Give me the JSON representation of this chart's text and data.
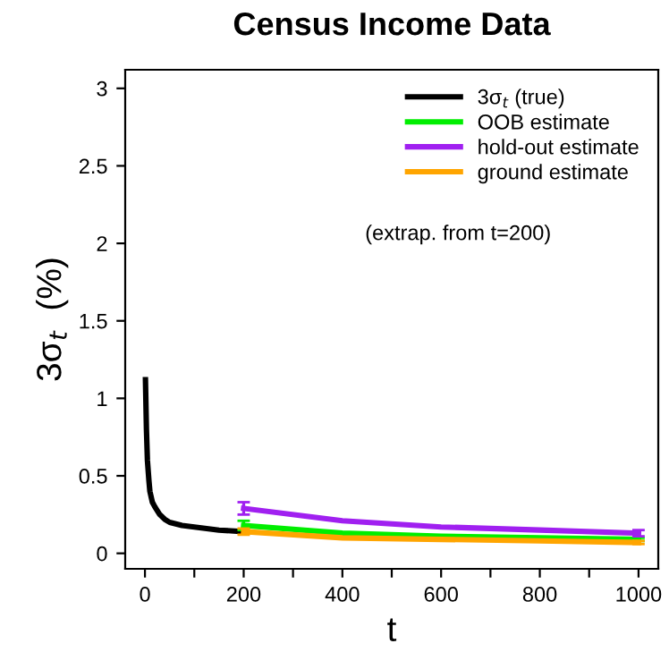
{
  "chart_data": {
    "type": "line",
    "title": "Census Income Data",
    "xlabel": "t",
    "ylabel": "3σ$_{t}$  (%)",
    "xlim": [
      -40,
      1040
    ],
    "ylim": [
      -0.1,
      3.12
    ],
    "xticks": [
      0,
      {
        "value": 100,
        "label": null
      },
      200,
      {
        "value": 300,
        "label": null
      },
      400,
      {
        "value": 500,
        "label": null
      },
      600,
      {
        "value": 700,
        "label": null
      },
      800,
      {
        "value": 900,
        "label": null
      },
      1000
    ],
    "yticks": [
      0,
      0.5,
      1,
      1.5,
      2,
      2.5,
      3
    ],
    "grid": false,
    "legend": "top right",
    "marker": "none",
    "line_style": "solid",
    "annotations": [
      "(extrap. from t=200)"
    ],
    "series": [
      {
        "name": "3σ$_{t}$ (true)",
        "color": "#000000",
        "x": [
          1,
          3,
          5,
          8,
          10,
          15,
          20,
          30,
          40,
          50,
          75,
          100,
          150,
          200
        ],
        "values": [
          1.12,
          0.8,
          0.6,
          0.47,
          0.4,
          0.33,
          0.3,
          0.25,
          0.22,
          0.2,
          0.18,
          0.17,
          0.15,
          0.14
        ]
      },
      {
        "name": "OOB estimate",
        "color": "#00ee00",
        "x": [
          200,
          400,
          600,
          800,
          1000
        ],
        "values": [
          0.18,
          0.13,
          0.11,
          0.1,
          0.09
        ],
        "errors": [
          0.03,
          null,
          null,
          null,
          0.01
        ]
      },
      {
        "name": "hold-out estimate",
        "color": "#a020f0",
        "x": [
          200,
          400,
          600,
          800,
          1000
        ],
        "values": [
          0.29,
          0.21,
          0.17,
          0.15,
          0.13
        ],
        "errors": [
          0.04,
          null,
          null,
          null,
          0.02
        ]
      },
      {
        "name": "ground estimate",
        "color": "#ffa500",
        "x": [
          200,
          400,
          600,
          800,
          1000
        ],
        "values": [
          0.14,
          0.1,
          0.09,
          0.08,
          0.07
        ],
        "errors": [
          0.02,
          null,
          null,
          null,
          0.01
        ]
      }
    ]
  }
}
